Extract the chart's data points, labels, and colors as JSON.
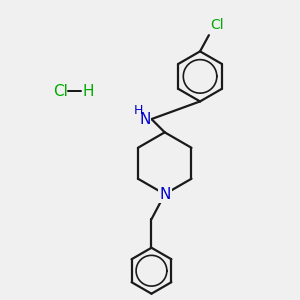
{
  "background_color": "#f0f0f0",
  "bond_color": "#1a1a1a",
  "N_color": "#0000cc",
  "H_color": "#00aa00",
  "Cl_color": "#00aa00",
  "bond_width": 1.6,
  "figsize": [
    3.0,
    3.0
  ],
  "dpi": 100,
  "xlim": [
    0,
    10
  ],
  "ylim": [
    0,
    10
  ]
}
